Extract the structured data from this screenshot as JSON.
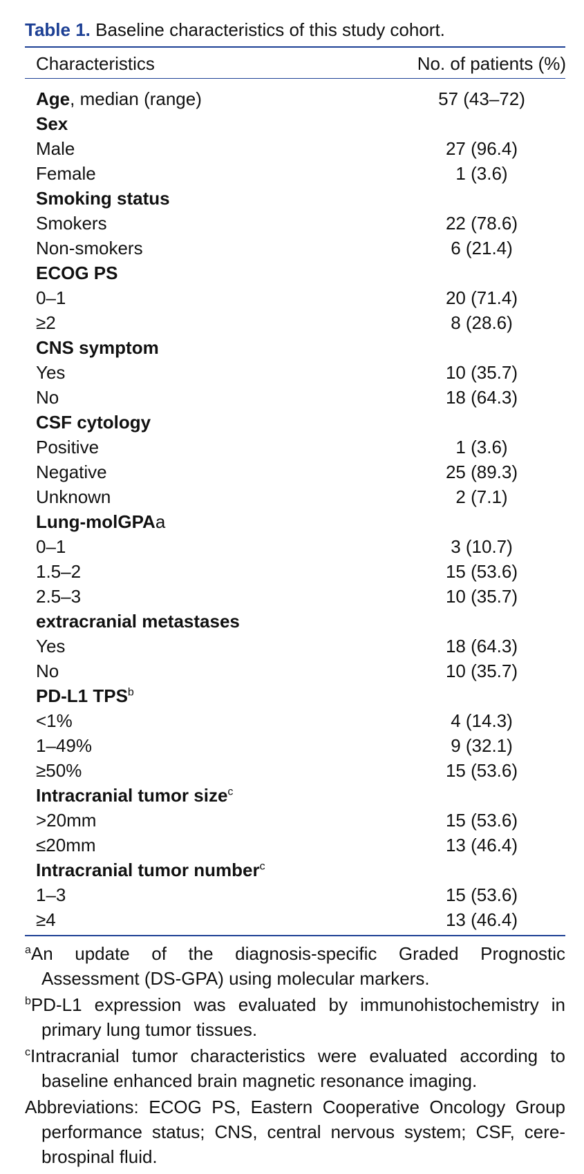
{
  "caption": {
    "label": "Table 1.",
    "text": "Baseline characteristics of this study cohort."
  },
  "columns": {
    "characteristics": "Characteristics",
    "patients": "No. of patients (%)"
  },
  "rows": [
    {
      "label": "Age",
      "suffix": ", median (range)",
      "value": "57 (43–72)",
      "group": true
    },
    {
      "label": "Sex",
      "group": true
    },
    {
      "label": "Male",
      "value": "27 (96.4)"
    },
    {
      "label": "Female",
      "value": "1 (3.6)"
    },
    {
      "label": "Smoking status",
      "group": true
    },
    {
      "label": "Smokers",
      "value": "22 (78.6)"
    },
    {
      "label": "Non-smokers",
      "value": "6 (21.4)"
    },
    {
      "label": "ECOG PS",
      "group": true
    },
    {
      "label": "0–1",
      "value": "20 (71.4)"
    },
    {
      "label": "≥2",
      "value": "8 (28.6)"
    },
    {
      "label": "CNS symptom",
      "group": true
    },
    {
      "label": "Yes",
      "value": "10 (35.7)"
    },
    {
      "label": "No",
      "value": "18 (64.3)"
    },
    {
      "label": "CSF cytology",
      "group": true
    },
    {
      "label": "Positive",
      "value": "1 (3.6)"
    },
    {
      "label": "Negative",
      "value": "25 (89.3)"
    },
    {
      "label": "Unknown",
      "value": "2 (7.1)"
    },
    {
      "label": "Lung-molGPA",
      "suffix": "a",
      "group": true
    },
    {
      "label": "0–1",
      "value": "3 (10.7)"
    },
    {
      "label": "1.5–2",
      "value": "15 (53.6)"
    },
    {
      "label": "2.5–3",
      "value": "10 (35.7)"
    },
    {
      "label": "extracranial metastases",
      "group": true
    },
    {
      "label": "Yes",
      "value": "18 (64.3)"
    },
    {
      "label": "No",
      "value": "10 (35.7)"
    },
    {
      "label": "PD-L1 TPS",
      "sup": "b",
      "group": true
    },
    {
      "label": "<1%",
      "value": "4 (14.3)"
    },
    {
      "label": "1–49%",
      "value": "9 (32.1)"
    },
    {
      "label": "≥50%",
      "value": "15 (53.6)"
    },
    {
      "label": "Intracranial tumor size",
      "sup": "c",
      "group": true
    },
    {
      "label": ">20mm",
      "value": "15 (53.6)"
    },
    {
      "label": "≤20mm",
      "value": "13 (46.4)"
    },
    {
      "label": "Intracranial tumor number",
      "sup": "c",
      "group": true
    },
    {
      "label": "1–3",
      "value": "15 (53.6)"
    },
    {
      "label": "≥4",
      "value": "13 (46.4)"
    }
  ],
  "footnotes": [
    {
      "mark": "a",
      "text": "An update of the diagnosis-specific Graded Prognostic Assessment (DS-GPA) using molecular markers."
    },
    {
      "mark": "b",
      "text": "PD-L1 expression was evaluated by immunohistochemistry in primary lung tumor tissues."
    },
    {
      "mark": "c",
      "text": "Intracranial tumor characteristics were evaluated according to baseline enhanced brain magnetic resonance imaging."
    },
    {
      "mark": "",
      "text": "Abbreviations: ECOG PS, Eastern Cooperative Oncology Group performance status; CNS, central nervous system; CSF, cere-brospinal fluid."
    }
  ]
}
